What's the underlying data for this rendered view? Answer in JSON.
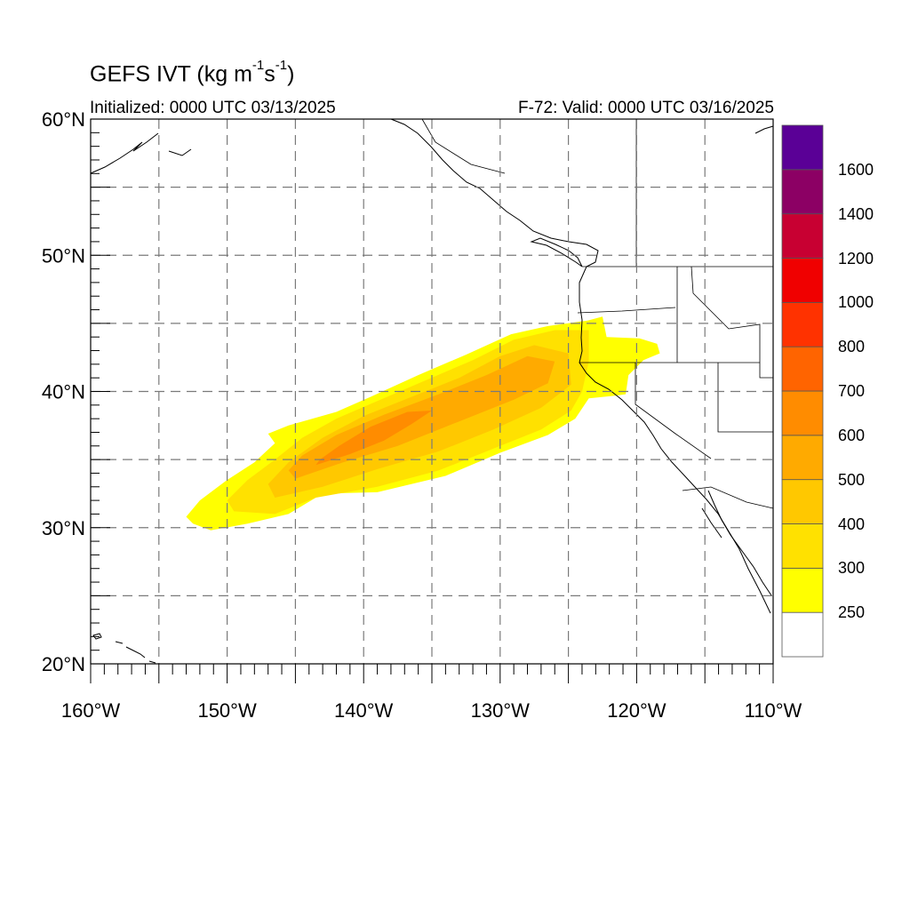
{
  "title": {
    "prefix": "GEFS IVT (kg m",
    "exp1": "-1",
    "mid": "s",
    "exp2": "-1",
    "suffix": ")"
  },
  "initialized": "Initialized: 0000 UTC 03/13/2025",
  "valid": "F-72: Valid: 0000 UTC 03/16/2025",
  "map": {
    "lon_range": [
      -160,
      -110
    ],
    "lat_range": [
      20,
      60
    ],
    "lat_labels": [
      {
        "lat": 60,
        "text": "60°N"
      },
      {
        "lat": 50,
        "text": "50°N"
      },
      {
        "lat": 40,
        "text": "40°N"
      },
      {
        "lat": 30,
        "text": "30°N"
      },
      {
        "lat": 20,
        "text": "20°N"
      }
    ],
    "lon_labels": [
      {
        "lon": -160,
        "text": "160°W"
      },
      {
        "lon": -150,
        "text": "150°W"
      },
      {
        "lon": -140,
        "text": "140°W"
      },
      {
        "lon": -130,
        "text": "130°W"
      },
      {
        "lon": -120,
        "text": "120°W"
      },
      {
        "lon": -110,
        "text": "110°W"
      }
    ],
    "grid_lon": [
      -155,
      -150,
      -145,
      -140,
      -135,
      -130,
      -125,
      -120,
      -115
    ],
    "grid_lat": [
      25,
      30,
      35,
      40,
      45,
      50,
      55
    ]
  },
  "colorbar": {
    "colors": [
      "#ffffff",
      "#ffff00",
      "#ffe100",
      "#ffc800",
      "#ffaa00",
      "#ff8c00",
      "#ff6400",
      "#ff3200",
      "#f00000",
      "#c80032",
      "#8c0064",
      "#5a0096"
    ],
    "labels": [
      "250",
      "300",
      "400",
      "500",
      "600",
      "700",
      "800",
      "1000",
      "1200",
      "1400",
      "1600"
    ]
  },
  "ivt_plume": {
    "levels": [
      {
        "value": 250,
        "color": "#ffff00",
        "polygon": [
          [
            -152.5,
            30.3
          ],
          [
            -151.2,
            29.8
          ],
          [
            -148.5,
            30.3
          ],
          [
            -145.5,
            31.0
          ],
          [
            -143.0,
            32.5
          ],
          [
            -139.0,
            32.6
          ],
          [
            -134.0,
            33.8
          ],
          [
            -130.0,
            35.5
          ],
          [
            -126.5,
            36.8
          ],
          [
            -124.5,
            38.0
          ],
          [
            -123.5,
            39.5
          ],
          [
            -121.5,
            39.7
          ],
          [
            -120.8,
            39.8
          ],
          [
            -120.6,
            41.2
          ],
          [
            -119.5,
            42.3
          ],
          [
            -118.3,
            42.8
          ],
          [
            -118.5,
            43.5
          ],
          [
            -119.8,
            43.9
          ],
          [
            -122.2,
            44.0
          ],
          [
            -122.5,
            45.5
          ],
          [
            -123.6,
            45.2
          ],
          [
            -126.5,
            44.8
          ],
          [
            -129.2,
            44.2
          ],
          [
            -132.5,
            42.7
          ],
          [
            -136.0,
            41.2
          ],
          [
            -139.5,
            39.6
          ],
          [
            -142.0,
            38.5
          ],
          [
            -145.5,
            37.5
          ],
          [
            -147.0,
            36.9
          ],
          [
            -146.5,
            36.2
          ],
          [
            -148.0,
            34.8
          ],
          [
            -150.0,
            33.5
          ],
          [
            -152.0,
            32.0
          ],
          [
            -153.0,
            30.8
          ]
        ]
      },
      {
        "value": 300,
        "color": "#ffe100",
        "polygon": [
          [
            -149.5,
            31.2
          ],
          [
            -146.5,
            31.0
          ],
          [
            -143.5,
            32.2
          ],
          [
            -139.0,
            33.0
          ],
          [
            -134.5,
            34.2
          ],
          [
            -130.5,
            35.8
          ],
          [
            -127.0,
            37.2
          ],
          [
            -124.8,
            38.6
          ],
          [
            -124.0,
            40.0
          ],
          [
            -123.5,
            42.2
          ],
          [
            -123.5,
            44.5
          ],
          [
            -126.0,
            44.5
          ],
          [
            -129.0,
            43.8
          ],
          [
            -132.0,
            42.3
          ],
          [
            -135.5,
            40.8
          ],
          [
            -139.0,
            39.3
          ],
          [
            -142.0,
            38.0
          ],
          [
            -144.5,
            36.6
          ],
          [
            -146.5,
            35.0
          ],
          [
            -148.5,
            33.5
          ],
          [
            -150.0,
            32.0
          ]
        ]
      },
      {
        "value": 400,
        "color": "#ffc800",
        "polygon": [
          [
            -146.5,
            32.2
          ],
          [
            -143.0,
            33.0
          ],
          [
            -139.0,
            34.3
          ],
          [
            -134.5,
            35.6
          ],
          [
            -130.5,
            37.2
          ],
          [
            -127.0,
            38.8
          ],
          [
            -124.8,
            40.5
          ],
          [
            -125.0,
            42.8
          ],
          [
            -127.5,
            43.4
          ],
          [
            -130.0,
            42.6
          ],
          [
            -133.0,
            41.0
          ],
          [
            -136.5,
            39.6
          ],
          [
            -140.0,
            38.2
          ],
          [
            -143.0,
            36.6
          ],
          [
            -145.5,
            34.8
          ],
          [
            -147.0,
            33.2
          ]
        ]
      },
      {
        "value": 500,
        "color": "#ffaa00",
        "polygon": [
          [
            -145.0,
            33.6
          ],
          [
            -141.5,
            34.8
          ],
          [
            -137.5,
            36.0
          ],
          [
            -133.0,
            37.8
          ],
          [
            -129.0,
            39.4
          ],
          [
            -126.5,
            40.6
          ],
          [
            -126.0,
            42.2
          ],
          [
            -128.0,
            42.6
          ],
          [
            -131.0,
            41.2
          ],
          [
            -134.5,
            39.8
          ],
          [
            -138.5,
            38.3
          ],
          [
            -142.0,
            36.8
          ],
          [
            -144.5,
            35.3
          ],
          [
            -145.5,
            34.2
          ]
        ]
      },
      {
        "value": 600,
        "color": "#ff8c00",
        "polygon": [
          [
            -143.5,
            34.6
          ],
          [
            -141.0,
            35.4
          ],
          [
            -138.5,
            36.4
          ],
          [
            -136.5,
            37.6
          ],
          [
            -135.0,
            38.6
          ],
          [
            -136.8,
            38.5
          ],
          [
            -139.5,
            37.4
          ],
          [
            -141.8,
            36.0
          ],
          [
            -143.2,
            35.0
          ]
        ]
      }
    ]
  }
}
